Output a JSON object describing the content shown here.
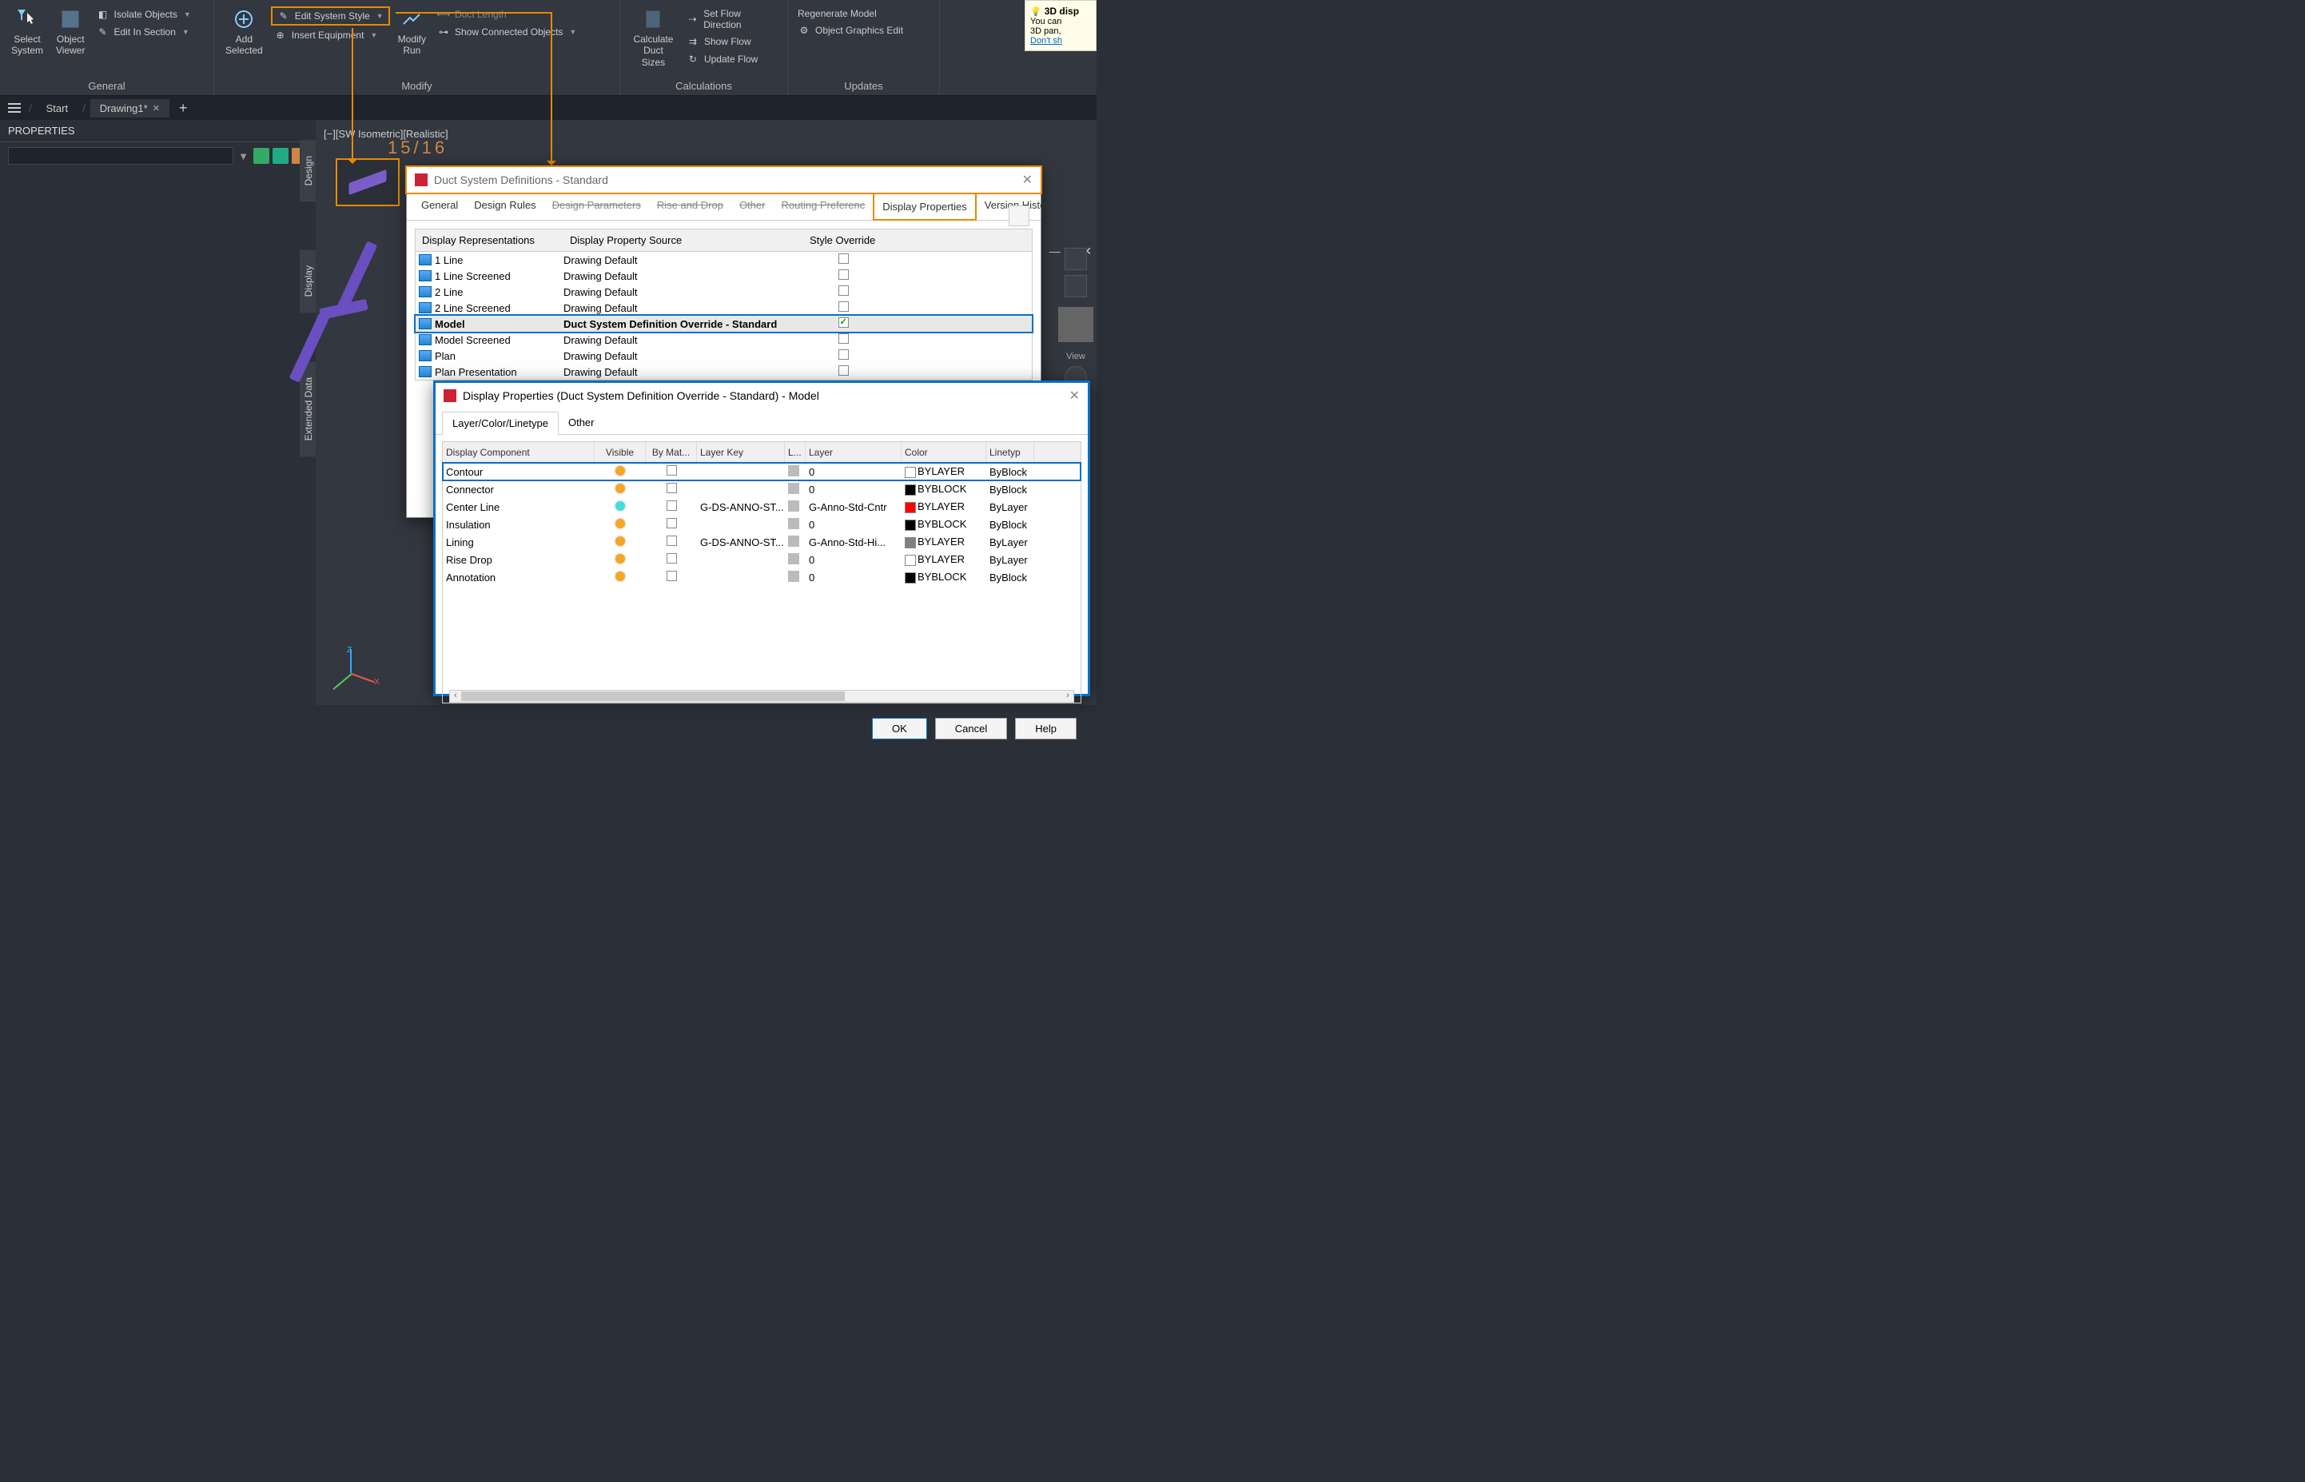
{
  "ribbon": {
    "groups": {
      "general": {
        "label": "General",
        "select_system": "Select\nSystem",
        "object_viewer": "Object\nViewer",
        "isolate_objects": "Isolate Objects",
        "edit_in_section": "Edit In Section"
      },
      "modify": {
        "label": "Modify",
        "add_selected": "Add\nSelected",
        "edit_system_style": "Edit System Style",
        "insert_equipment": "Insert Equipment",
        "modify_run": "Modify\nRun",
        "duct_length": "Duct Length",
        "show_connected": "Show Connected Objects"
      },
      "calculations": {
        "label": "Calculations",
        "calculate_duct": "Calculate\nDuct Sizes",
        "set_flow": "Set Flow Direction",
        "show_flow": "Show Flow",
        "update_flow": "Update Flow"
      },
      "updates": {
        "label": "Updates",
        "regenerate": "Regenerate Model",
        "obj_graphics": "Object Graphics Edit"
      }
    }
  },
  "tabs": {
    "start": "Start",
    "drawing": "Drawing1*"
  },
  "properties": {
    "title": "PROPERTIES"
  },
  "viewport": {
    "label": "[−][SW Isometric][Realistic]",
    "counter": "15/16",
    "view_lbl": "View"
  },
  "sidetabs": {
    "design": "Design",
    "display": "Display",
    "extdata": "Extended Data"
  },
  "tooltip": {
    "title": "3D disp",
    "l1": "You can",
    "l2": "3D pan,",
    "link": "Don't sh"
  },
  "dlg1": {
    "title": "Duct System Definitions - Standard",
    "tabs": [
      "General",
      "Design Rules",
      "Design Parameters",
      "Rise and Drop",
      "Other",
      "Routing Preferenc",
      "Display Properties",
      "Version History"
    ],
    "active_tab": 6,
    "headers": {
      "rep": "Display Representations",
      "src": "Display Property Source",
      "ovr": "Style Override"
    },
    "rows": [
      {
        "name": "1 Line",
        "src": "Drawing Default",
        "ovr": false
      },
      {
        "name": "1 Line Screened",
        "src": "Drawing Default",
        "ovr": false
      },
      {
        "name": "2 Line",
        "src": "Drawing Default",
        "ovr": false
      },
      {
        "name": "2 Line Screened",
        "src": "Drawing Default",
        "ovr": false
      },
      {
        "name": "Model",
        "src": "Duct System Definition Override - Standard",
        "ovr": true,
        "sel": true
      },
      {
        "name": "Model Screened",
        "src": "Drawing Default",
        "ovr": false
      },
      {
        "name": "Plan",
        "src": "Drawing Default",
        "ovr": false
      },
      {
        "name": "Plan Presentation",
        "src": "Drawing Default",
        "ovr": false
      }
    ]
  },
  "dlg2": {
    "title": "Display Properties (Duct System Definition Override - Standard) - Model",
    "subtabs": [
      "Layer/Color/Linetype",
      "Other"
    ],
    "headers": {
      "comp": "Display Component",
      "vis": "Visible",
      "mat": "By Mat...",
      "lkey": "Layer Key",
      "l": "L...",
      "layer": "Layer",
      "color": "Color",
      "lt": "Linetyp"
    },
    "rows": [
      {
        "comp": "Contour",
        "bulb": "on",
        "mat": false,
        "lkey": "",
        "layer": "0",
        "sw": "#ffffff",
        "color": "BYLAYER",
        "lt": "ByBlock",
        "sel": true
      },
      {
        "comp": "Connector",
        "bulb": "on",
        "mat": false,
        "lkey": "",
        "layer": "0",
        "sw": "#000000",
        "color": "BYBLOCK",
        "lt": "ByBlock"
      },
      {
        "comp": "Center Line",
        "bulb": "cyan",
        "mat": false,
        "lkey": "G-DS-ANNO-ST...",
        "layer": "G-Anno-Std-Cntr",
        "sw": "#ff0000",
        "color": "BYLAYER",
        "lt": "ByLayer"
      },
      {
        "comp": "Insulation",
        "bulb": "on",
        "mat": false,
        "lkey": "",
        "layer": "0",
        "sw": "#000000",
        "color": "BYBLOCK",
        "lt": "ByBlock"
      },
      {
        "comp": "Lining",
        "bulb": "on",
        "mat": false,
        "lkey": "G-DS-ANNO-ST...",
        "layer": "G-Anno-Std-Hi...",
        "sw": "#808080",
        "color": "BYLAYER",
        "lt": "ByLayer"
      },
      {
        "comp": "Rise Drop",
        "bulb": "on",
        "mat": false,
        "lkey": "",
        "layer": "0",
        "sw": "#ffffff",
        "color": "BYLAYER",
        "lt": "ByLayer"
      },
      {
        "comp": "Annotation",
        "bulb": "on",
        "mat": false,
        "lkey": "",
        "layer": "0",
        "sw": "#000000",
        "color": "BYBLOCK",
        "lt": "ByBlock"
      }
    ],
    "buttons": {
      "ok": "OK",
      "cancel": "Cancel",
      "help": "Help"
    }
  }
}
